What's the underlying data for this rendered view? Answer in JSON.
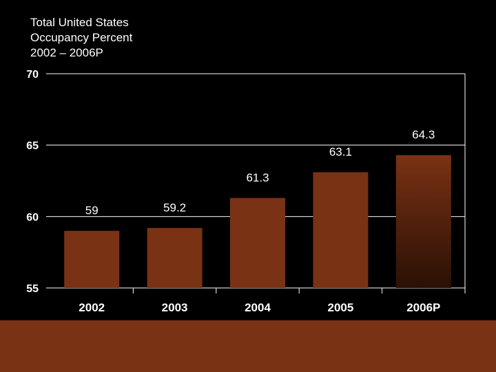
{
  "title_lines": [
    "Total United States",
    "Occupancy Percent",
    "2002 – 2006P"
  ],
  "colors": {
    "background": "#000000",
    "bar": "#7a3214",
    "bar_projected_top": "#7a3214",
    "bar_projected_bottom": "#2a1005",
    "axis": "#ffffff",
    "footer": "#7a3214"
  },
  "chart_data": {
    "type": "bar",
    "title": "Total United States Occupancy Percent 2002 – 2006P",
    "categories": [
      "2002",
      "2003",
      "2004",
      "2005",
      "2006P"
    ],
    "values": [
      59,
      59.2,
      61.3,
      63.1,
      64.3
    ],
    "value_labels": [
      "59",
      "59.2",
      "61.3",
      "63.1",
      "64.3"
    ],
    "projected": [
      false,
      false,
      false,
      false,
      true
    ],
    "ylim": [
      55,
      70
    ],
    "yticks": [
      70,
      65,
      60,
      55
    ],
    "grid": true,
    "xlabel": "",
    "ylabel": ""
  }
}
